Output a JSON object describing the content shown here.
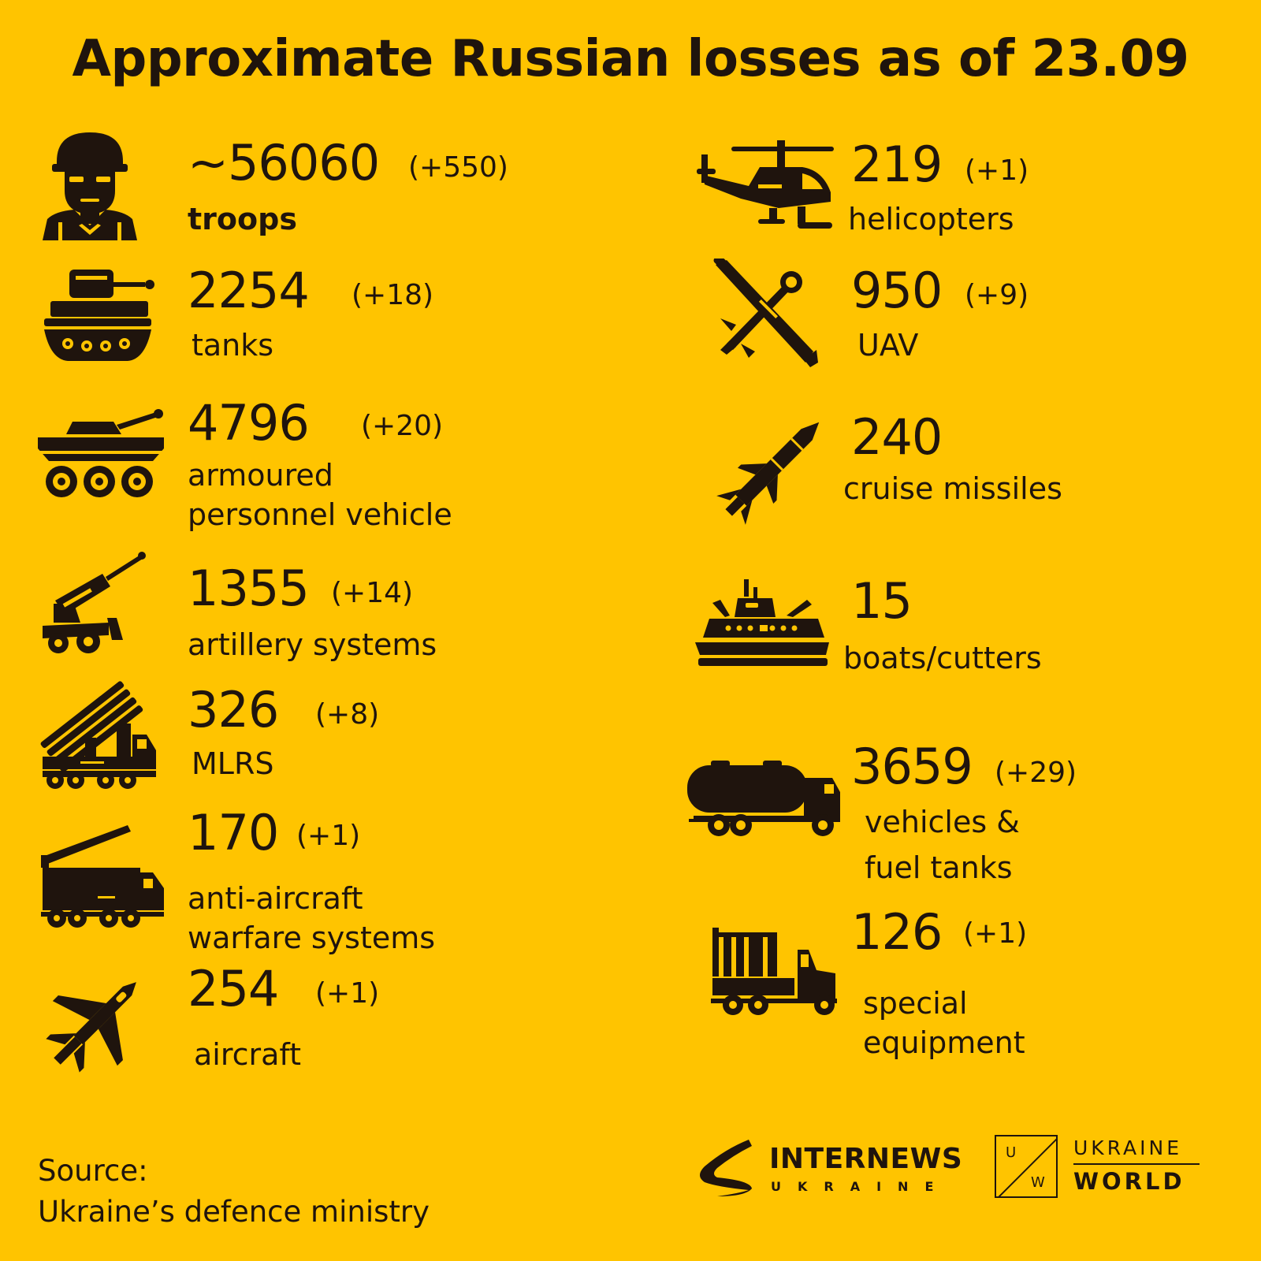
{
  "title": "Approximate Russian losses as of 23.09",
  "colors": {
    "background": "#ffc400",
    "ink": "#1f140d"
  },
  "items": [
    {
      "icon": "soldier-icon",
      "number": "~56060",
      "change": "(+550)",
      "label": [
        "troops"
      ]
    },
    {
      "icon": "tank-icon",
      "number": "2254",
      "change": "(+18)",
      "label": [
        "tanks"
      ]
    },
    {
      "icon": "apc-icon",
      "number": "4796",
      "change": "(+20)",
      "label": [
        "armoured",
        "personnel vehicle"
      ]
    },
    {
      "icon": "artillery-icon",
      "number": "1355",
      "change": "(+14)",
      "label": [
        "artillery systems"
      ]
    },
    {
      "icon": "mlrs-icon",
      "number": "326",
      "change": "(+8)",
      "label": [
        "MLRS"
      ]
    },
    {
      "icon": "anti-aircraft-icon",
      "number": "170",
      "change": "(+1)",
      "label": [
        "anti-aircraft",
        "warfare systems"
      ]
    },
    {
      "icon": "aircraft-icon",
      "number": "254",
      "change": "(+1)",
      "label": [
        "aircraft"
      ]
    },
    {
      "icon": "helicopter-icon",
      "number": "219",
      "change": "(+1)",
      "label": [
        "helicopters"
      ]
    },
    {
      "icon": "uav-icon",
      "number": "950",
      "change": "(+9)",
      "label": [
        "UAV"
      ]
    },
    {
      "icon": "cruise-missile-icon",
      "number": "240",
      "change": "",
      "label": [
        "cruise missiles"
      ]
    },
    {
      "icon": "boat-icon",
      "number": "15",
      "change": "",
      "label": [
        "boats/cutters"
      ]
    },
    {
      "icon": "fuel-truck-icon",
      "number": "3659",
      "change": "(+29)",
      "label": [
        "vehicles &",
        "fuel tanks"
      ]
    },
    {
      "icon": "special-truck-icon",
      "number": "126",
      "change": "(+1)",
      "label": [
        "special",
        "equipment"
      ]
    }
  ],
  "source": {
    "heading": "Source:",
    "text": "Ukraine’s defence ministry"
  },
  "logos": {
    "internews": {
      "name": "INTERNEWS",
      "sub": "UKRAINE"
    },
    "ukraine_world": {
      "mark_u": "U",
      "mark_w": "W",
      "line1": "UKRAINE",
      "line2": "WORLD"
    }
  }
}
